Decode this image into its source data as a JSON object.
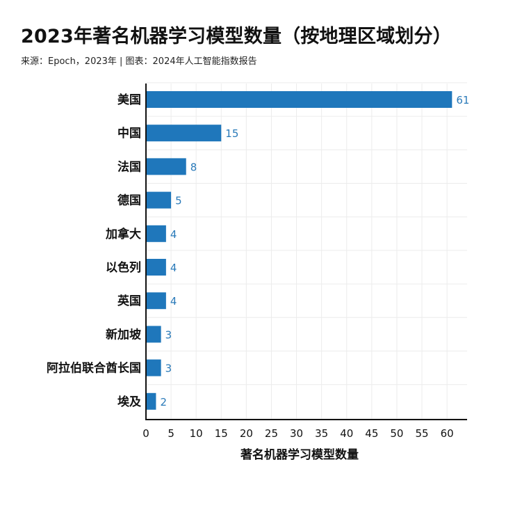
{
  "header": {
    "title": "2023年著名机器学习模型数量（按地理区域划分）",
    "subtitle": "来源：Epoch，2023年 | 图表：2024年人工智能指数报告"
  },
  "chart_data": {
    "type": "bar",
    "orientation": "horizontal",
    "categories": [
      "美国",
      "中国",
      "法国",
      "德国",
      "加拿大",
      "以色列",
      "英国",
      "新加坡",
      "阿拉伯联合酋长国",
      "埃及"
    ],
    "values": [
      61,
      15,
      8,
      5,
      4,
      4,
      4,
      3,
      3,
      2
    ],
    "xlabel": "著名机器学习模型数量",
    "ylabel": "",
    "xlim": [
      0,
      64
    ],
    "xticks": [
      0,
      5,
      10,
      15,
      20,
      25,
      30,
      35,
      40,
      45,
      50,
      55,
      60
    ],
    "grid": true,
    "data_labels": true,
    "colors": {
      "bar": "#1f77bb",
      "label": "#2a7ab9",
      "grid": "#ececec",
      "axis": "#111111"
    }
  }
}
